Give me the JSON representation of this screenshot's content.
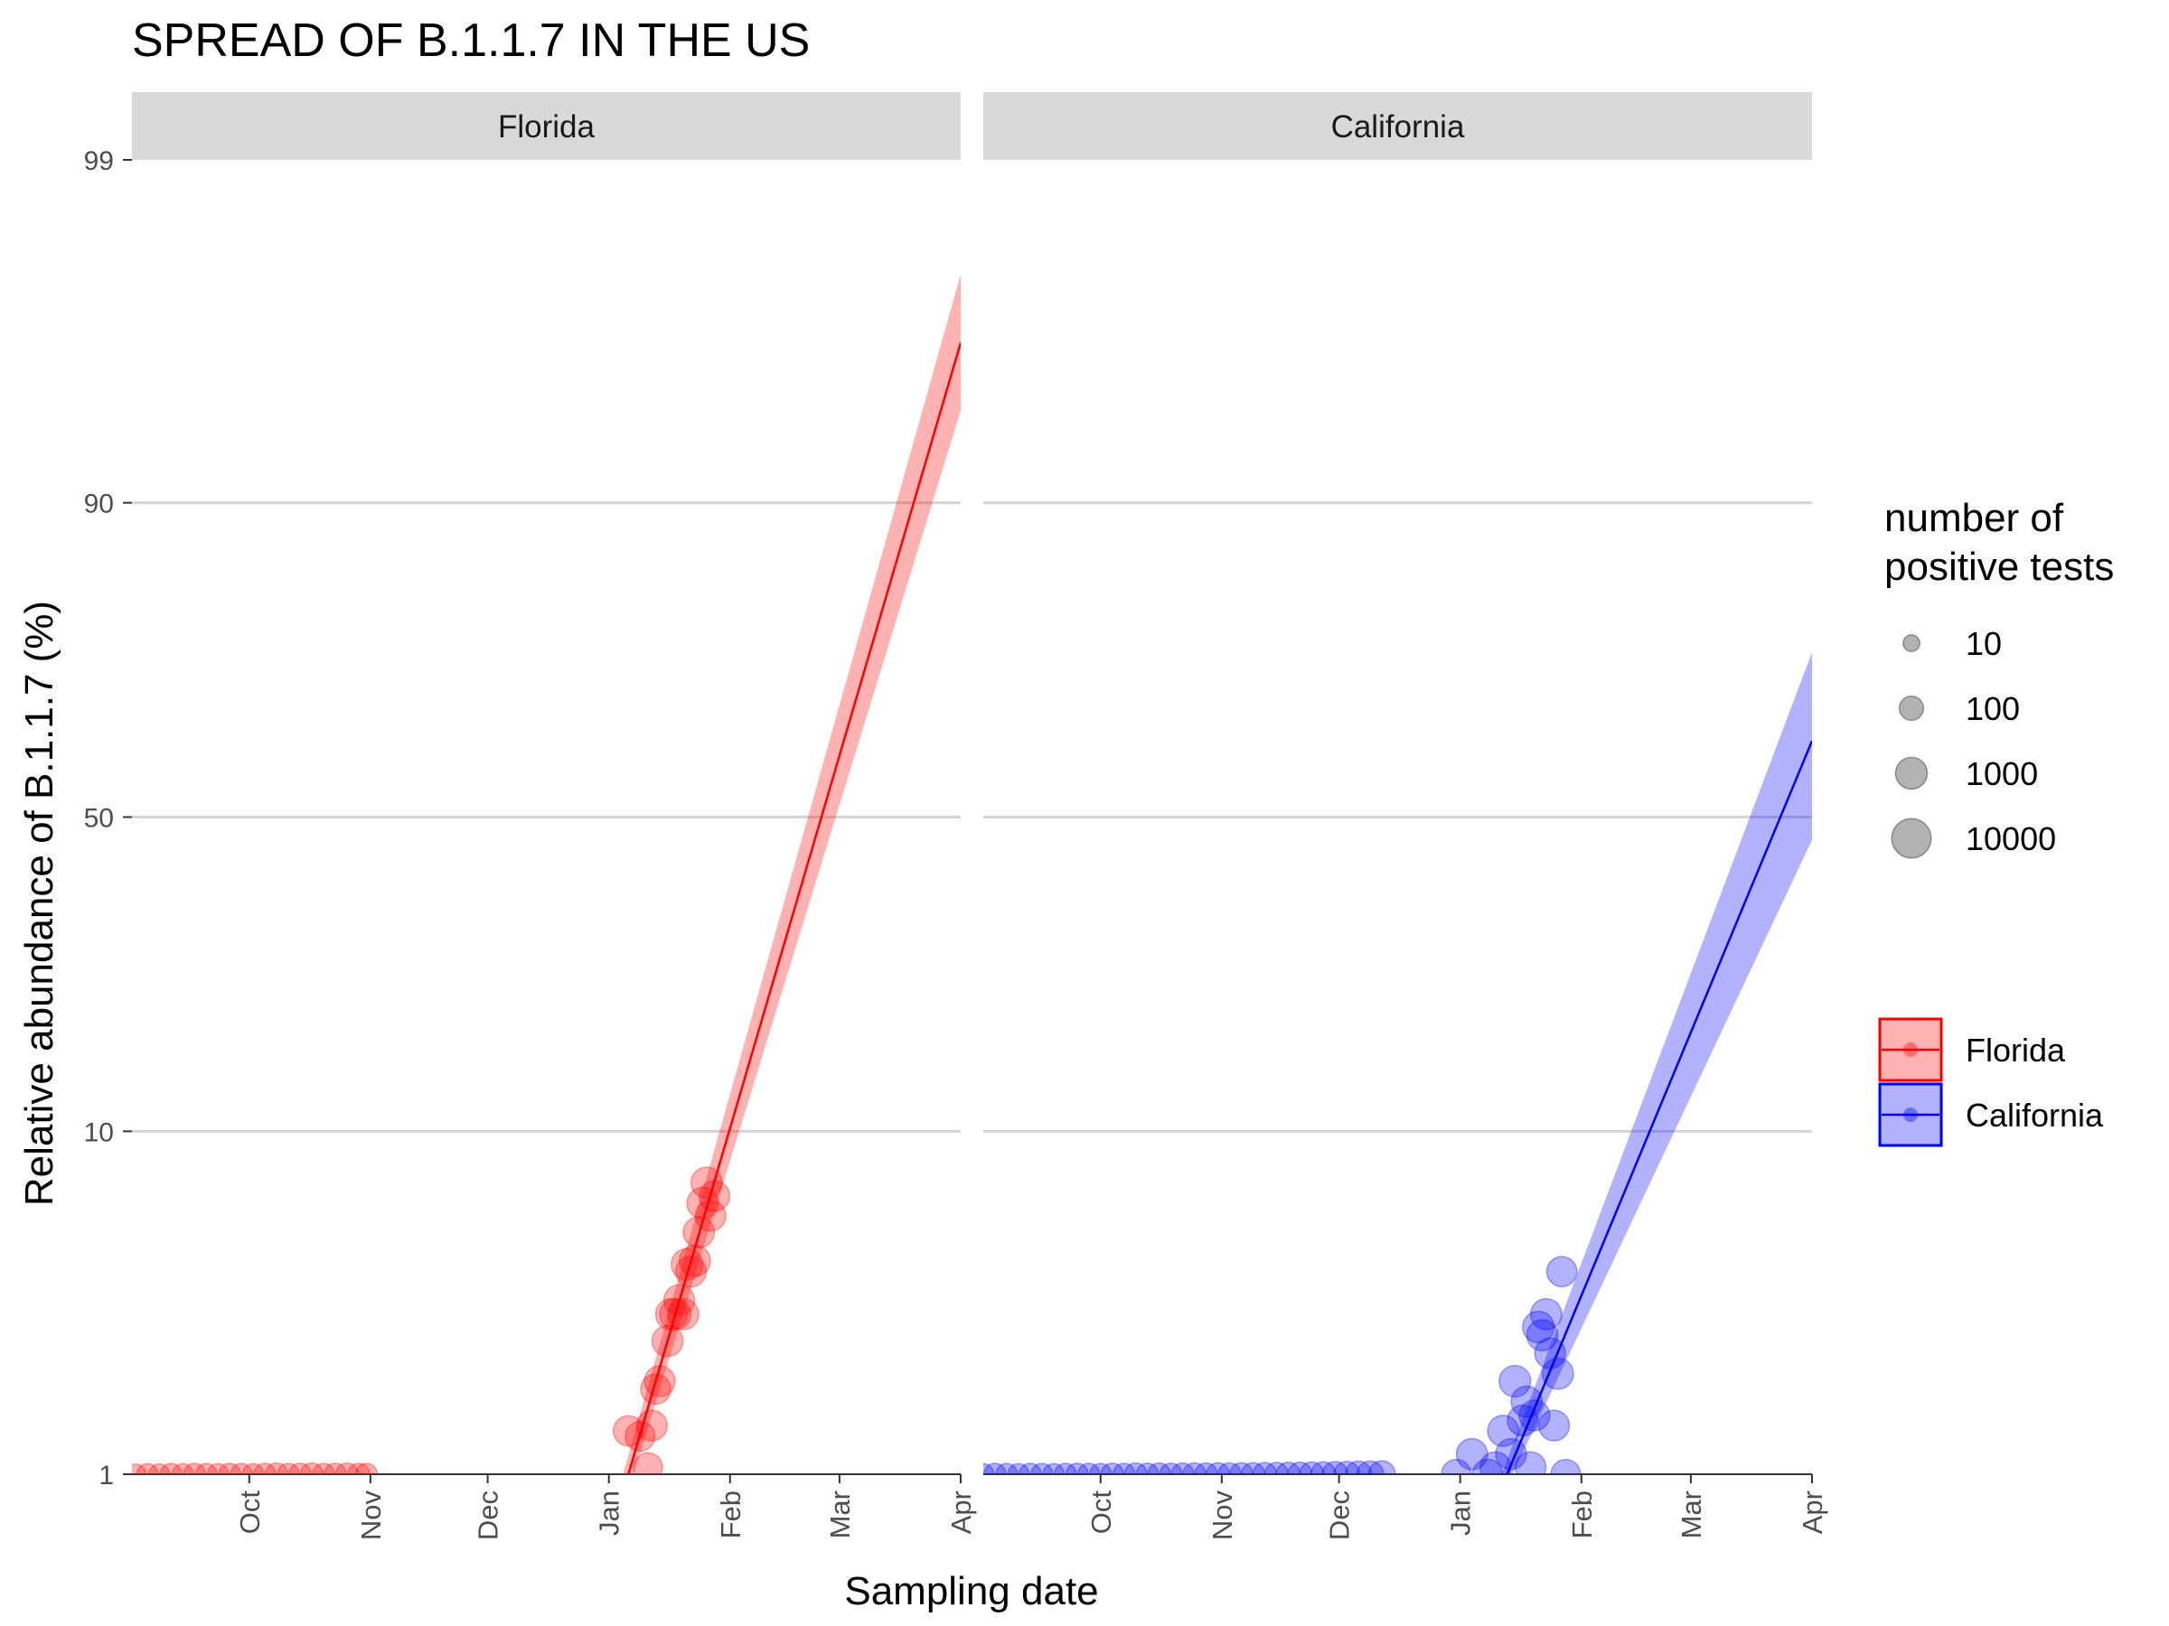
{
  "chart_data": {
    "type": "scatter",
    "title": "SPREAD OF B.1.1.7 IN THE US",
    "xlabel": "Sampling date",
    "ylabel": "Relative abundance of B.1.1.7 (%)",
    "y_scale": "logit",
    "yticks": [
      1,
      10,
      50,
      90,
      99
    ],
    "ylim": [
      1,
      99
    ],
    "xlim": [
      "2020-09-01",
      "2021-04-01"
    ],
    "xticks": [
      {
        "label": "Oct",
        "date": "2020-10-01"
      },
      {
        "label": "Nov",
        "date": "2020-11-01"
      },
      {
        "label": "Dec",
        "date": "2020-12-01"
      },
      {
        "label": "Jan",
        "date": "2021-01-01"
      },
      {
        "label": "Feb",
        "date": "2021-02-01"
      },
      {
        "label": "Mar",
        "date": "2021-03-01"
      },
      {
        "label": "Apr",
        "date": "2021-04-01"
      }
    ],
    "grid": true,
    "facets": [
      {
        "name": "Florida",
        "color": "#ff0000",
        "fit": {
          "start": {
            "date": "2021-01-06",
            "y": 1
          },
          "end": {
            "date": "2021-04-01",
            "y": 96.5
          },
          "band_low_end": 94.5,
          "band_high_end": 97.8
        },
        "points": [
          {
            "date": "2020-09-02",
            "y": 1,
            "n": 30
          },
          {
            "date": "2020-09-05",
            "y": 1,
            "n": 40
          },
          {
            "date": "2020-09-08",
            "y": 1,
            "n": 35
          },
          {
            "date": "2020-09-11",
            "y": 1,
            "n": 45
          },
          {
            "date": "2020-09-14",
            "y": 1,
            "n": 40
          },
          {
            "date": "2020-09-17",
            "y": 1,
            "n": 50
          },
          {
            "date": "2020-09-20",
            "y": 1,
            "n": 45
          },
          {
            "date": "2020-09-23",
            "y": 1,
            "n": 40
          },
          {
            "date": "2020-09-26",
            "y": 1,
            "n": 50
          },
          {
            "date": "2020-09-29",
            "y": 1,
            "n": 45
          },
          {
            "date": "2020-10-02",
            "y": 1,
            "n": 40
          },
          {
            "date": "2020-10-05",
            "y": 1,
            "n": 50
          },
          {
            "date": "2020-10-08",
            "y": 1,
            "n": 60
          },
          {
            "date": "2020-10-11",
            "y": 1,
            "n": 45
          },
          {
            "date": "2020-10-14",
            "y": 1,
            "n": 55
          },
          {
            "date": "2020-10-17",
            "y": 1,
            "n": 60
          },
          {
            "date": "2020-10-20",
            "y": 1,
            "n": 50
          },
          {
            "date": "2020-10-23",
            "y": 1,
            "n": 55
          },
          {
            "date": "2020-10-26",
            "y": 1,
            "n": 60
          },
          {
            "date": "2020-10-29",
            "y": 1,
            "n": 50
          },
          {
            "date": "2020-10-31",
            "y": 1,
            "n": 45
          },
          {
            "date": "2021-01-06",
            "y": 1.35,
            "n": 600
          },
          {
            "date": "2021-01-09",
            "y": 1.3,
            "n": 500
          },
          {
            "date": "2021-01-11",
            "y": 1.05,
            "n": 400
          },
          {
            "date": "2021-01-12",
            "y": 1.4,
            "n": 700
          },
          {
            "date": "2021-01-13",
            "y": 1.8,
            "n": 600
          },
          {
            "date": "2021-01-14",
            "y": 1.9,
            "n": 700
          },
          {
            "date": "2021-01-16",
            "y": 2.5,
            "n": 800
          },
          {
            "date": "2021-01-17",
            "y": 3.0,
            "n": 900
          },
          {
            "date": "2021-01-18",
            "y": 3.0,
            "n": 800
          },
          {
            "date": "2021-01-19",
            "y": 3.3,
            "n": 700
          },
          {
            "date": "2021-01-20",
            "y": 3.0,
            "n": 800
          },
          {
            "date": "2021-01-21",
            "y": 4.2,
            "n": 900
          },
          {
            "date": "2021-01-22",
            "y": 4.0,
            "n": 700
          },
          {
            "date": "2021-01-23",
            "y": 4.3,
            "n": 800
          },
          {
            "date": "2021-01-24",
            "y": 5.2,
            "n": 800
          },
          {
            "date": "2021-01-25",
            "y": 6.3,
            "n": 900
          },
          {
            "date": "2021-01-26",
            "y": 7.2,
            "n": 800
          },
          {
            "date": "2021-01-27",
            "y": 5.8,
            "n": 700
          },
          {
            "date": "2021-01-28",
            "y": 6.6,
            "n": 700
          }
        ]
      },
      {
        "name": "California",
        "color": "#0000ff",
        "fit": {
          "start": {
            "date": "2021-01-13",
            "y": 1
          },
          "end": {
            "date": "2021-04-01",
            "y": 63
          },
          "band_low_end": 46,
          "band_high_end": 76
        },
        "points": [
          {
            "date": "2020-09-01",
            "y": 1,
            "n": 40
          },
          {
            "date": "2020-09-04",
            "y": 1,
            "n": 50
          },
          {
            "date": "2020-09-07",
            "y": 1,
            "n": 45
          },
          {
            "date": "2020-09-10",
            "y": 1,
            "n": 40
          },
          {
            "date": "2020-09-13",
            "y": 1,
            "n": 50
          },
          {
            "date": "2020-09-16",
            "y": 1,
            "n": 45
          },
          {
            "date": "2020-09-19",
            "y": 1,
            "n": 40
          },
          {
            "date": "2020-09-22",
            "y": 1,
            "n": 50
          },
          {
            "date": "2020-09-25",
            "y": 1,
            "n": 55
          },
          {
            "date": "2020-09-28",
            "y": 1,
            "n": 50
          },
          {
            "date": "2020-10-01",
            "y": 1,
            "n": 45
          },
          {
            "date": "2020-10-04",
            "y": 1,
            "n": 55
          },
          {
            "date": "2020-10-07",
            "y": 1,
            "n": 50
          },
          {
            "date": "2020-10-10",
            "y": 1,
            "n": 60
          },
          {
            "date": "2020-10-13",
            "y": 1,
            "n": 55
          },
          {
            "date": "2020-10-16",
            "y": 1,
            "n": 60
          },
          {
            "date": "2020-10-19",
            "y": 1,
            "n": 55
          },
          {
            "date": "2020-10-22",
            "y": 1,
            "n": 60
          },
          {
            "date": "2020-10-25",
            "y": 1,
            "n": 65
          },
          {
            "date": "2020-10-28",
            "y": 1,
            "n": 60
          },
          {
            "date": "2020-10-31",
            "y": 1,
            "n": 70
          },
          {
            "date": "2020-11-03",
            "y": 1,
            "n": 65
          },
          {
            "date": "2020-11-06",
            "y": 1,
            "n": 70
          },
          {
            "date": "2020-11-09",
            "y": 1,
            "n": 75
          },
          {
            "date": "2020-11-12",
            "y": 1,
            "n": 80
          },
          {
            "date": "2020-11-15",
            "y": 1,
            "n": 85
          },
          {
            "date": "2020-11-18",
            "y": 1,
            "n": 90
          },
          {
            "date": "2020-11-21",
            "y": 1,
            "n": 100
          },
          {
            "date": "2020-11-24",
            "y": 1,
            "n": 110
          },
          {
            "date": "2020-11-27",
            "y": 1,
            "n": 120
          },
          {
            "date": "2020-11-30",
            "y": 1,
            "n": 140
          },
          {
            "date": "2020-12-03",
            "y": 1,
            "n": 160
          },
          {
            "date": "2020-12-06",
            "y": 1,
            "n": 180
          },
          {
            "date": "2020-12-09",
            "y": 1,
            "n": 200
          },
          {
            "date": "2020-12-12",
            "y": 1,
            "n": 220
          },
          {
            "date": "2020-12-31",
            "y": 1,
            "n": 500
          },
          {
            "date": "2021-01-04",
            "y": 1.15,
            "n": 800
          },
          {
            "date": "2021-01-08",
            "y": 1,
            "n": 600
          },
          {
            "date": "2021-01-10",
            "y": 1.05,
            "n": 700
          },
          {
            "date": "2021-01-12",
            "y": 1.35,
            "n": 800
          },
          {
            "date": "2021-01-14",
            "y": 1.15,
            "n": 700
          },
          {
            "date": "2021-01-15",
            "y": 1.9,
            "n": 900
          },
          {
            "date": "2021-01-17",
            "y": 1.45,
            "n": 700
          },
          {
            "date": "2021-01-18",
            "y": 1.65,
            "n": 800
          },
          {
            "date": "2021-01-19",
            "y": 1.05,
            "n": 700
          },
          {
            "date": "2021-01-20",
            "y": 1.5,
            "n": 700
          },
          {
            "date": "2021-01-21",
            "y": 2.75,
            "n": 900
          },
          {
            "date": "2021-01-22",
            "y": 2.6,
            "n": 800
          },
          {
            "date": "2021-01-23",
            "y": 3.0,
            "n": 800
          },
          {
            "date": "2021-01-24",
            "y": 2.3,
            "n": 700
          },
          {
            "date": "2021-01-25",
            "y": 1.4,
            "n": 700
          },
          {
            "date": "2021-01-26",
            "y": 2.0,
            "n": 800
          },
          {
            "date": "2021-01-27",
            "y": 4.0,
            "n": 600
          },
          {
            "date": "2021-01-28",
            "y": 1.0,
            "n": 500
          }
        ]
      }
    ],
    "legend_size": {
      "title": [
        "number of",
        "positive tests"
      ],
      "entries": [
        {
          "label": "10",
          "n": 10
        },
        {
          "label": "100",
          "n": 100
        },
        {
          "label": "1000",
          "n": 1000
        },
        {
          "label": "10000",
          "n": 10000
        }
      ]
    },
    "legend_color": {
      "entries": [
        {
          "label": "Florida",
          "color": "#ff0000"
        },
        {
          "label": "California",
          "color": "#0000ff"
        }
      ]
    },
    "legend_placement": "right"
  }
}
